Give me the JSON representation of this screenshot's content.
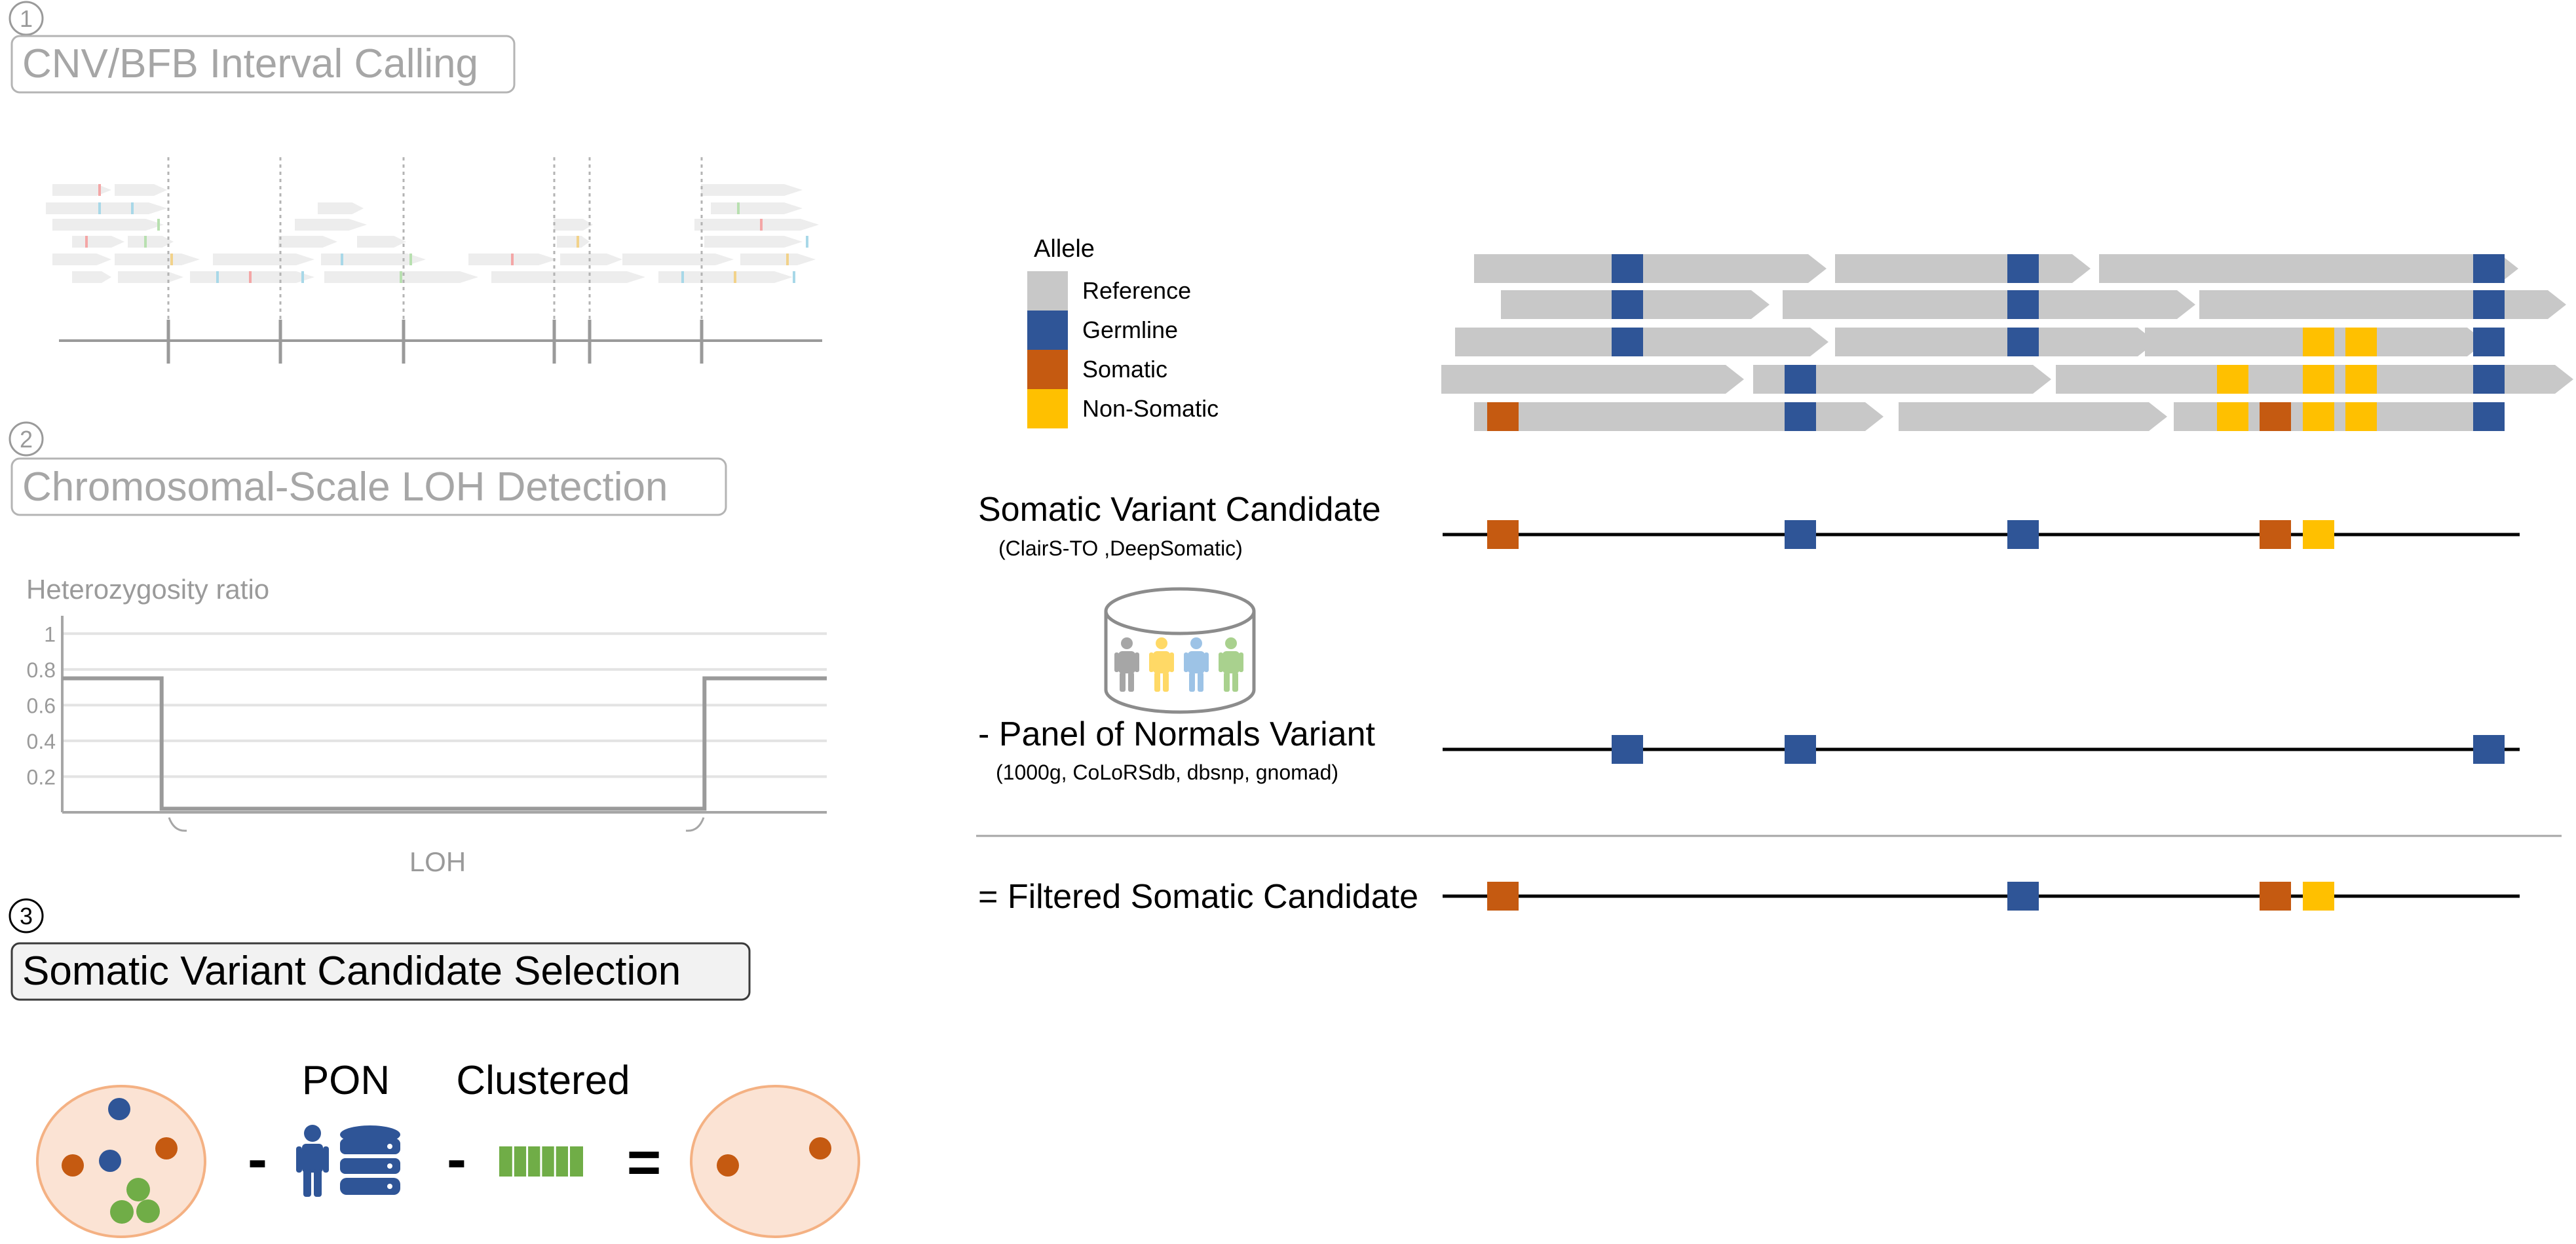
{
  "colors": {
    "reference": "#c8c8c8",
    "germline": "#2f5597",
    "somatic": "#c55a11",
    "non_somatic": "#ffc000",
    "grey_text": "#9a9a9a",
    "cell_fill": "#fbe3d4",
    "cell_stroke": "#f4b183",
    "cluster_green": "#70ad47",
    "person_grey": "#a6a6a6",
    "person_yellow": "#ffd966",
    "person_blue": "#9dc3e6",
    "person_green": "#a9d18e"
  },
  "step1": {
    "number": "1",
    "title": "CNV/BFB Interval Calling"
  },
  "step2": {
    "number": "2",
    "title": "Chromosomal-Scale LOH Detection",
    "chart_data": {
      "type": "line",
      "ylabel": "Heterozygosity ratio",
      "yticks": [
        "1",
        "0.8",
        "0.6",
        "0.4",
        "0.2"
      ],
      "ylim": [
        0,
        1.1
      ],
      "x": [
        0,
        0.13,
        0.13,
        0.84,
        0.84,
        1
      ],
      "values": [
        0.75,
        0.75,
        0.02,
        0.02,
        0.75,
        0.75
      ],
      "annotation": "LOH"
    }
  },
  "step3": {
    "number": "3",
    "title": "Somatic Variant Candidate Selection",
    "pon_label": "PON",
    "clustered_label": "Clustered",
    "minus1": "-",
    "minus2": "-",
    "equals": "="
  },
  "legend": {
    "title": "Allele",
    "items": [
      {
        "label": "Reference",
        "color_key": "reference"
      },
      {
        "label": "Germline",
        "color_key": "germline"
      },
      {
        "label": "Somatic",
        "color_key": "somatic"
      },
      {
        "label": "Non-Somatic",
        "color_key": "non_somatic"
      }
    ]
  },
  "tracks": {
    "somatic_candidate": {
      "title": "Somatic Variant Candidate",
      "subtitle": "(ClairS-TO ,DeepSomatic)"
    },
    "pon": {
      "title": "- Panel of Normals Variant",
      "subtitle": "(1000g, CoLoRSdb, dbsnp, gnomad)"
    },
    "filtered": {
      "title": "= Filtered Somatic Candidate"
    }
  }
}
